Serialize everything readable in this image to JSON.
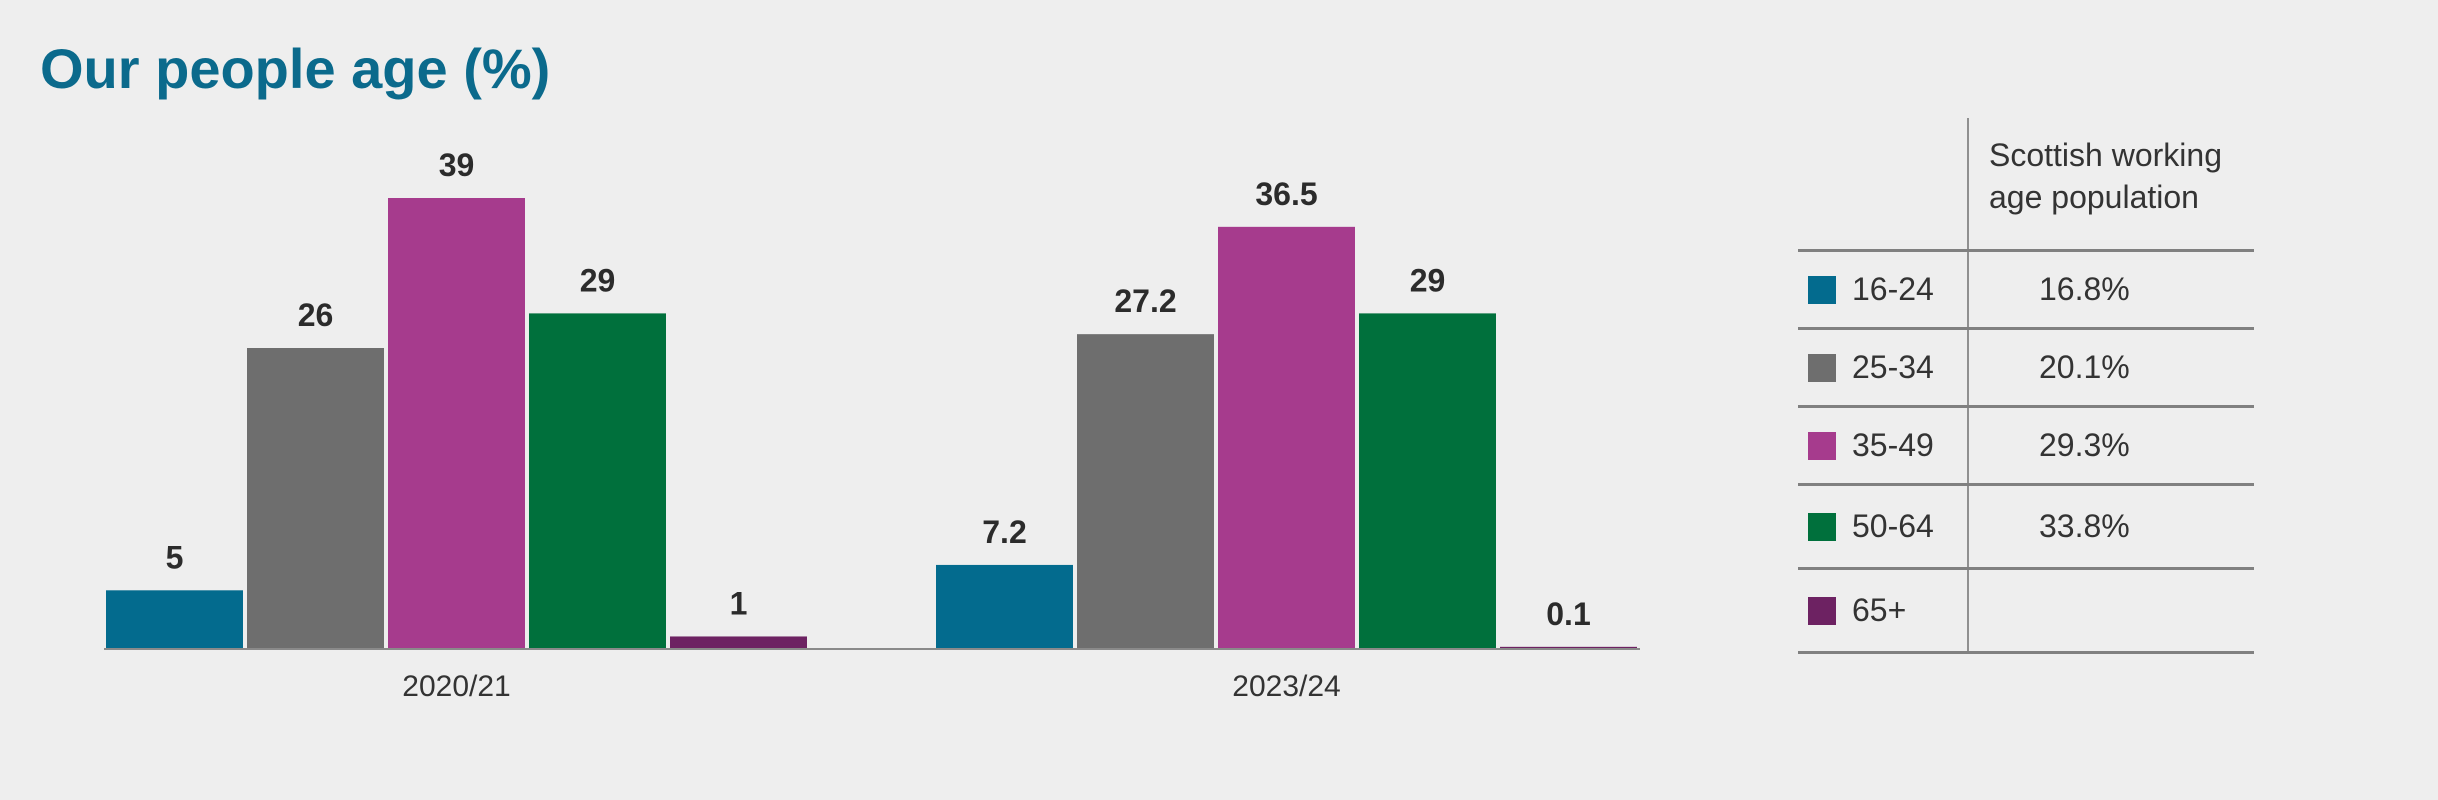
{
  "title": "Our people age (%)",
  "chart_data": {
    "type": "bar",
    "title": "Our people age (%)",
    "categories": [
      "2020/21",
      "2023/24"
    ],
    "series": [
      {
        "name": "16-24",
        "color": "#036b8e",
        "values": [
          5,
          7.2
        ],
        "labels": [
          "5",
          "7.2"
        ]
      },
      {
        "name": "25-34",
        "color": "#6e6e6e",
        "values": [
          26,
          27.2
        ],
        "labels": [
          "26",
          "27.2"
        ]
      },
      {
        "name": "35-49",
        "color": "#a63b8d",
        "values": [
          39,
          36.5
        ],
        "labels": [
          "39",
          "36.5"
        ]
      },
      {
        "name": "50-64",
        "color": "#00703c",
        "values": [
          29,
          29
        ],
        "labels": [
          "29",
          "29"
        ]
      },
      {
        "name": "65+",
        "color": "#6d2262",
        "values": [
          1,
          0.1
        ],
        "labels": [
          "1",
          "0.1"
        ]
      }
    ],
    "ylim": [
      0,
      39
    ],
    "grid": false,
    "legend_placement": "right"
  },
  "legend_table": {
    "header": "Scottish working\nage population",
    "rows": [
      {
        "label": "16-24",
        "color": "#036b8e",
        "value": "16.8%"
      },
      {
        "label": "25-34",
        "color": "#6e6e6e",
        "value": "20.1%"
      },
      {
        "label": "35-49",
        "color": "#a63b8d",
        "value": "29.3%"
      },
      {
        "label": "50-64",
        "color": "#00703c",
        "value": "33.8%"
      },
      {
        "label": "65+",
        "color": "#6d2262",
        "value": ""
      }
    ]
  }
}
